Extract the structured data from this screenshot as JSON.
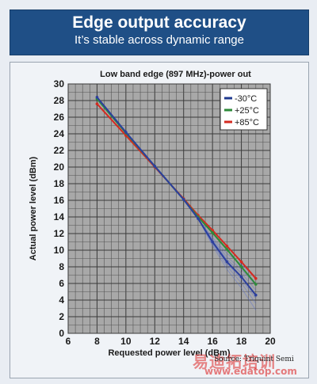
{
  "header": {
    "title": "Edge output accuracy",
    "subtitle": "It’s stable across dynamic range"
  },
  "chart_data": {
    "type": "line",
    "title": "Low band edge (897 MHz)-power out",
    "xlabel": "Requested power level (dBm)",
    "ylabel": "Actual power level (dBm)",
    "xlim": [
      6,
      20
    ],
    "ylim": [
      0,
      30
    ],
    "xticks": [
      "6",
      "8",
      "10",
      "12",
      "14",
      "16",
      "18",
      "20"
    ],
    "yticks": [
      "0",
      "2",
      "4",
      "6",
      "8",
      "10",
      "12",
      "14",
      "16",
      "18",
      "20",
      "22",
      "24",
      "26",
      "28",
      "30"
    ],
    "grid": true,
    "legend_position": "top-right",
    "series": [
      {
        "name": "-30°C",
        "color": "#2b3f9e",
        "x": [
          8,
          10,
          12,
          14,
          15,
          16,
          17,
          18,
          19
        ],
        "y": [
          28.4,
          24.2,
          20.1,
          16.1,
          13.8,
          11.0,
          8.6,
          6.8,
          4.6
        ]
      },
      {
        "name": "+25°C",
        "color": "#2e8a3a",
        "x": [
          8,
          10,
          12,
          14,
          15,
          16,
          17,
          18,
          19
        ],
        "y": [
          28.2,
          24.1,
          20.1,
          16.1,
          14.0,
          12.1,
          10.1,
          8.0,
          5.9
        ]
      },
      {
        "name": "+85°C",
        "color": "#d42a20",
        "x": [
          8,
          10,
          12,
          14,
          15,
          16,
          17,
          18,
          19
        ],
        "y": [
          27.6,
          23.8,
          20.0,
          16.2,
          14.2,
          12.4,
          10.5,
          8.6,
          6.6
        ]
      }
    ],
    "legend_colors": [
      "#1f3a8f",
      "#2e8a3a",
      "#d42a20"
    ]
  },
  "footer": {
    "source": "Source: Triquint Semi",
    "watermark": "易迪拓培训",
    "watermark_url": "www.edatop.com"
  }
}
